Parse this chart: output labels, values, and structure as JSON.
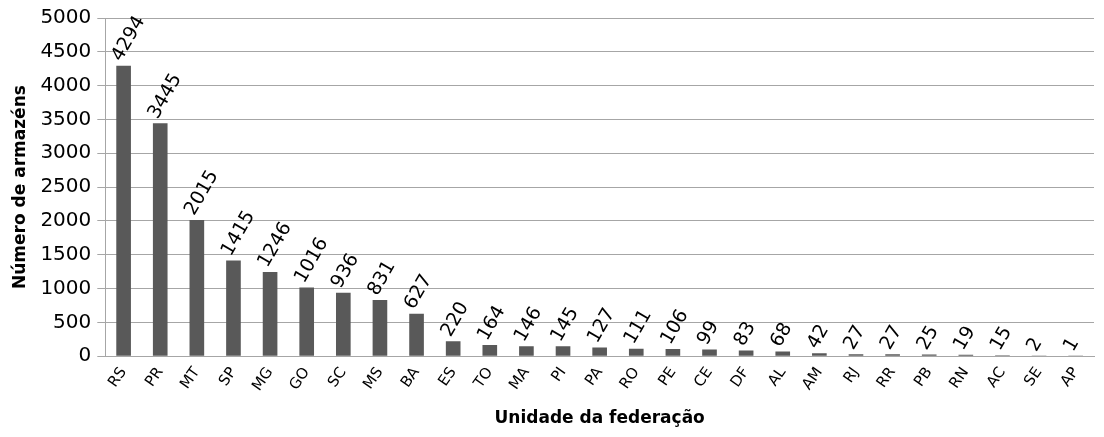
{
  "chart_data": {
    "type": "bar",
    "xlabel": "Unidade da federação",
    "ylabel": "Número de armazéns",
    "categories": [
      "RS",
      "PR",
      "MT",
      "SP",
      "MG",
      "GO",
      "SC",
      "MS",
      "BA",
      "ES",
      "TO",
      "MA",
      "PI",
      "PA",
      "RO",
      "PE",
      "CE",
      "DF",
      "AL",
      "AM",
      "RJ",
      "RR",
      "PB",
      "RN",
      "AC",
      "SE",
      "AP"
    ],
    "values": [
      4294,
      3445,
      2015,
      1415,
      1246,
      1016,
      936,
      831,
      627,
      220,
      164,
      146,
      145,
      127,
      111,
      106,
      99,
      83,
      68,
      42,
      27,
      27,
      25,
      19,
      15,
      2,
      1
    ],
    "color": "#595959",
    "ylim": [
      0,
      5000
    ],
    "yticks": [
      0,
      500,
      1000,
      1500,
      2000,
      2500,
      3000,
      3500,
      4000,
      4500,
      5000
    ],
    "grid": "y",
    "data_labels": true
  }
}
